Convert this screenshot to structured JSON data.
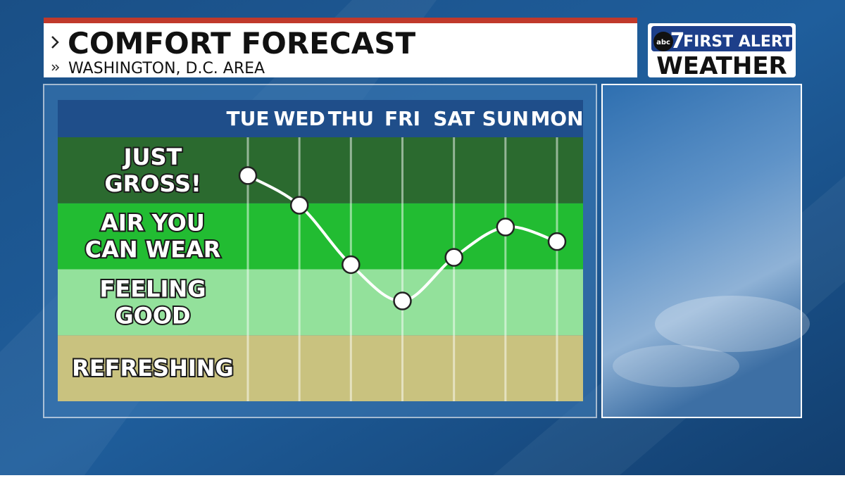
{
  "header": {
    "title": "COMFORT FORECAST",
    "subtitle": "WASHINGTON, D.C. AREA",
    "logo": {
      "network": "abc",
      "channel": "7",
      "line1": "FIRST ALERT",
      "line2": "WEATHER"
    }
  },
  "chart_data": {
    "type": "line",
    "categories": [
      "TUE",
      "WED",
      "THU",
      "FRI",
      "SAT",
      "SUN",
      "MON"
    ],
    "values": [
      3.42,
      2.97,
      2.07,
      1.52,
      2.18,
      2.64,
      2.42
    ],
    "ylim": [
      0,
      4
    ],
    "color": "#ffffff",
    "bands": [
      {
        "label": [
          "REFRESHING"
        ],
        "color": "#c9c27f"
      },
      {
        "label": [
          "FEELING",
          "GOOD"
        ],
        "color": "#93e19b"
      },
      {
        "label": [
          "AIR YOU",
          "CAN WEAR"
        ],
        "color": "#22bc32"
      },
      {
        "label": [
          "JUST",
          "GROSS!"
        ],
        "color": "#2b6a2f"
      }
    ],
    "grid": true
  }
}
